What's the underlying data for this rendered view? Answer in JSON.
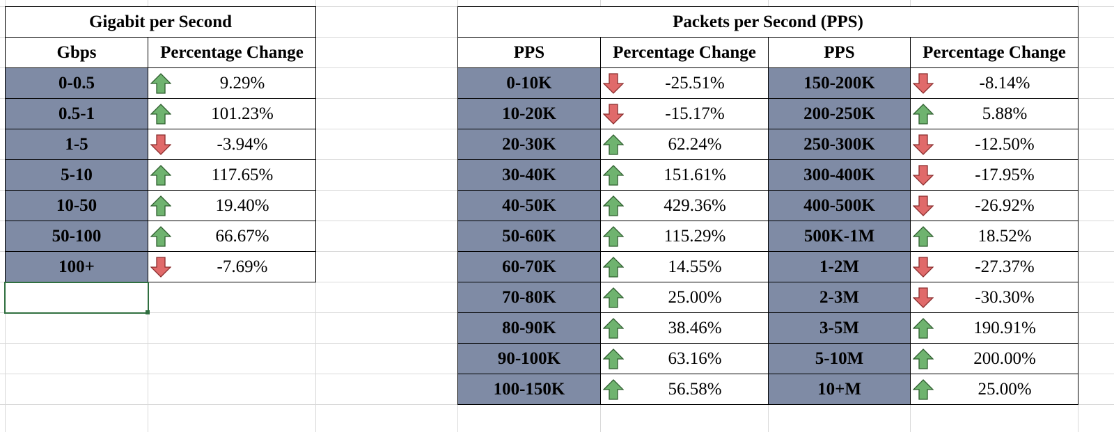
{
  "gbps_table": {
    "title": "Gigabit per Second",
    "col_range": "Gbps",
    "col_change": "Percentage Change",
    "rows": [
      {
        "range": "0-0.5",
        "change": "9.29%",
        "dir": "up"
      },
      {
        "range": "0.5-1",
        "change": "101.23%",
        "dir": "up"
      },
      {
        "range": "1-5",
        "change": "-3.94%",
        "dir": "down"
      },
      {
        "range": "5-10",
        "change": "117.65%",
        "dir": "up"
      },
      {
        "range": "10-50",
        "change": "19.40%",
        "dir": "up"
      },
      {
        "range": "50-100",
        "change": "66.67%",
        "dir": "up"
      },
      {
        "range": "100+",
        "change": "-7.69%",
        "dir": "down"
      }
    ]
  },
  "pps_table": {
    "title": "Packets per Second (PPS)",
    "col_range": "PPS",
    "col_change": "Percentage Change",
    "left_rows": [
      {
        "range": "0-10K",
        "change": "-25.51%",
        "dir": "down"
      },
      {
        "range": "10-20K",
        "change": "-15.17%",
        "dir": "down"
      },
      {
        "range": "20-30K",
        "change": "62.24%",
        "dir": "up"
      },
      {
        "range": "30-40K",
        "change": "151.61%",
        "dir": "up"
      },
      {
        "range": "40-50K",
        "change": "429.36%",
        "dir": "up"
      },
      {
        "range": "50-60K",
        "change": "115.29%",
        "dir": "up"
      },
      {
        "range": "60-70K",
        "change": "14.55%",
        "dir": "up"
      },
      {
        "range": "70-80K",
        "change": "25.00%",
        "dir": "up"
      },
      {
        "range": "80-90K",
        "change": "38.46%",
        "dir": "up"
      },
      {
        "range": "90-100K",
        "change": "63.16%",
        "dir": "up"
      },
      {
        "range": "100-150K",
        "change": "56.58%",
        "dir": "up"
      }
    ],
    "right_rows": [
      {
        "range": "150-200K",
        "change": "-8.14%",
        "dir": "down"
      },
      {
        "range": "200-250K",
        "change": "5.88%",
        "dir": "up"
      },
      {
        "range": "250-300K",
        "change": "-12.50%",
        "dir": "down"
      },
      {
        "range": "300-400K",
        "change": "-17.95%",
        "dir": "down"
      },
      {
        "range": "400-500K",
        "change": "-26.92%",
        "dir": "down"
      },
      {
        "range": "500K-1M",
        "change": "18.52%",
        "dir": "up"
      },
      {
        "range": "1-2M",
        "change": "-27.37%",
        "dir": "down"
      },
      {
        "range": "2-3M",
        "change": "-30.30%",
        "dir": "down"
      },
      {
        "range": "3-5M",
        "change": "190.91%",
        "dir": "up"
      },
      {
        "range": "5-10M",
        "change": "200.00%",
        "dir": "up"
      },
      {
        "range": "10+M",
        "change": "25.00%",
        "dir": "up"
      }
    ]
  },
  "icons": {
    "up": "green-up-arrow-icon",
    "down": "red-down-arrow-icon"
  },
  "colors": {
    "label_fill": "#7f8ba5",
    "up_arrow": "#6fb36f",
    "down_arrow": "#e06a6a",
    "gridline": "#d9d9d9",
    "selection": "#2f6f3f"
  }
}
